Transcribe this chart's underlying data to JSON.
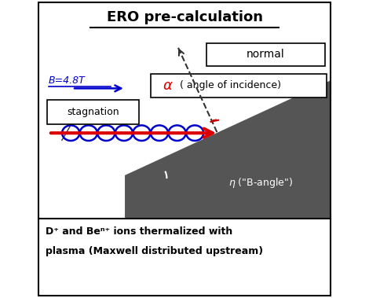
{
  "title": "ERO pre-calculation",
  "bg_color": "#ffffff",
  "border_color": "#000000",
  "bottom_text_line1": "D⁺ and Beⁿ⁺ ions thermalized with",
  "bottom_text_line2": "plasma (Maxwell distributed upstream)",
  "b_field_label": "B=4.8T",
  "normal_label": "normal",
  "stagnation_label": "stagnation",
  "eta_label": "η (“B-angle”)",
  "triangle_color": "#555555",
  "red_arrow_color": "#dd0000",
  "blue_arrow_color": "#0000cc",
  "coil_color": "#0000cc",
  "dashed_color": "#333333",
  "red_arc_color": "#cc0000",
  "white_color": "#ffffff"
}
